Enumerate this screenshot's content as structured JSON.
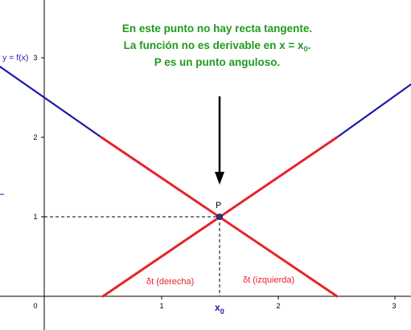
{
  "notes": {
    "line1": "En este punto no hay recta tangente.",
    "line2_prefix": "La función no es derivable en x = x",
    "line2_sub": "0",
    "line2_suffix": ".",
    "line3": "P es un punto anguloso."
  },
  "labels": {
    "function": "y = f(x)",
    "point": "P",
    "tangent_right": "δt (derecha)",
    "tangent_left": "δt (izquierda)",
    "x0_main": "x",
    "x0_sub": "0"
  },
  "axes": {
    "x_ticks": [
      "0",
      "1",
      "2",
      "3"
    ],
    "y_ticks": [
      "1",
      "2",
      "3"
    ]
  },
  "colors": {
    "function": "#1a1aa6",
    "tangent": "#e8232a",
    "note": "#1f9a1f",
    "point": "#2233aa"
  }
}
